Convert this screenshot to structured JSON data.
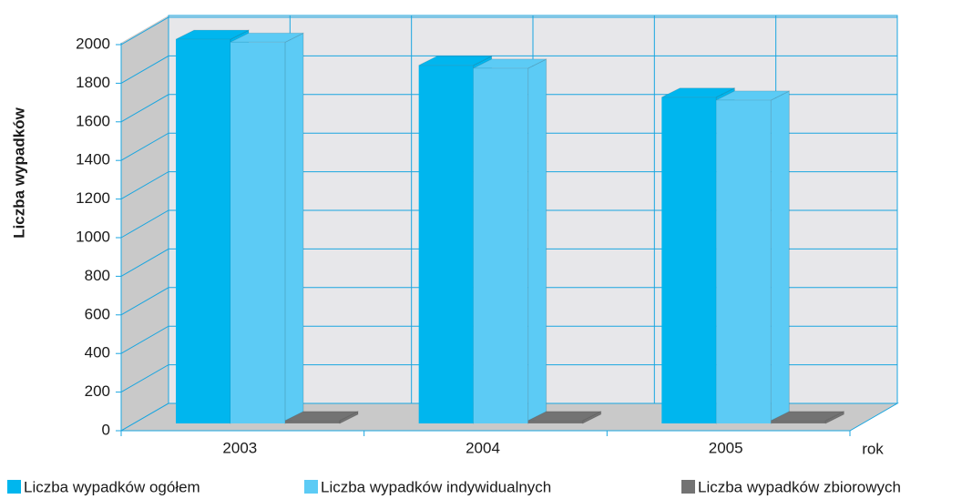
{
  "chart_data": {
    "type": "bar3d",
    "y_label": "Liczba wypadków",
    "x_label": "rok",
    "categories": [
      "2003",
      "2004",
      "2005"
    ],
    "series": [
      {
        "name": "Liczba wypadków ogółem",
        "color": "#00b6ee",
        "values": [
          1990,
          1855,
          1690
        ]
      },
      {
        "name": "Liczba wypadków indywidualnych",
        "color": "#5ccbf5",
        "values": [
          1975,
          1840,
          1675
        ]
      },
      {
        "name": "Liczba wypadków zbiorowych",
        "color": "#737373",
        "values": [
          15,
          15,
          15
        ]
      }
    ],
    "ylim": [
      0,
      2000
    ],
    "yticks": [
      0,
      200,
      400,
      600,
      800,
      1000,
      1200,
      1400,
      1600,
      1800,
      2000
    ],
    "grid": true
  }
}
